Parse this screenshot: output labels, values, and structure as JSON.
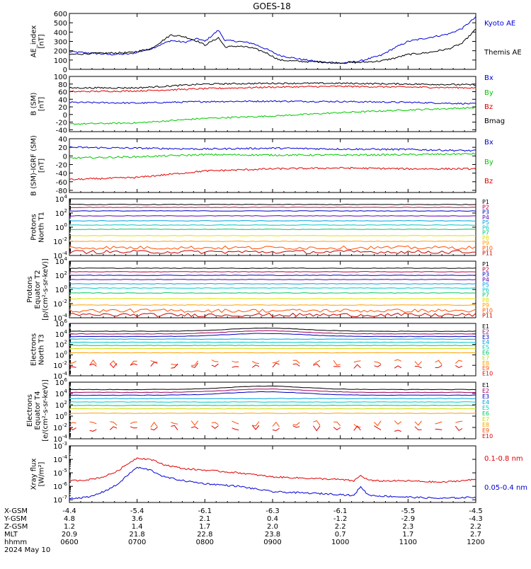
{
  "title": "GOES-18",
  "colors": {
    "black": "#000000",
    "red": "#e00000",
    "green": "#00c800",
    "blue": "#0000d8",
    "p_series": [
      "#000000",
      "#c00040",
      "#0000c0",
      "#6000c0",
      "#00a0e0",
      "#00c8c8",
      "#00c860",
      "#e0e000",
      "#ffa000",
      "#ff5000",
      "#c80000",
      "#900000"
    ],
    "e_series": [
      "#000000",
      "#a00060",
      "#0000c0",
      "#00a0e0",
      "#00c8c8",
      "#00c860",
      "#c8e000",
      "#ffa000",
      "#ff5000",
      "#e00000"
    ]
  },
  "ticks": {
    "x_positions_hours": [
      6,
      7,
      8,
      9,
      10,
      11,
      12
    ]
  },
  "ephemeris": {
    "row_labels": [
      "X-GSM",
      "Y-GSM",
      "Z-GSM",
      "MLT",
      "hhmm"
    ],
    "date": "2024 May 10",
    "columns": [
      [
        "-4.4",
        "4.8",
        "1.2",
        "20.9",
        "0600"
      ],
      [
        "-5.4",
        "3.6",
        "1.4",
        "21.8",
        "0700"
      ],
      [
        "-6.1",
        "2.1",
        "1.7",
        "22.8",
        "0800"
      ],
      [
        "-6.3",
        "0.4",
        "2.0",
        "23.8",
        "0900"
      ],
      [
        "-6.1",
        "-1.2",
        "2.2",
        "0.7",
        "1000"
      ],
      [
        "-5.5",
        "-2.9",
        "2.3",
        "1.7",
        "1100"
      ],
      [
        "-4.5",
        "-4.3",
        "2.2",
        "2.7",
        "1200"
      ]
    ]
  },
  "chart_data": [
    {
      "type": "line",
      "ylabel": "AE_index [nT]",
      "ylabel_lines": [
        "AE_index",
        "[nT]"
      ],
      "ylim": [
        0,
        600
      ],
      "yticks": [
        "0",
        "100",
        "200",
        "300",
        "400",
        "500",
        "600"
      ],
      "legend": [
        "Kyoto AE",
        "Themis AE"
      ],
      "series": [
        {
          "name": "Kyoto AE",
          "color": "blue",
          "x": [
            6.0,
            6.3,
            6.6,
            6.9,
            7.2,
            7.5,
            7.7,
            7.9,
            8.0,
            8.2,
            8.3,
            8.5,
            8.7,
            8.9,
            9.1,
            9.4,
            9.7,
            10.0,
            10.3,
            10.6,
            10.8,
            11.0,
            11.3,
            11.6,
            11.8,
            12.0
          ],
          "y": [
            190,
            175,
            160,
            165,
            220,
            310,
            290,
            330,
            300,
            420,
            310,
            300,
            280,
            220,
            150,
            110,
            80,
            65,
            90,
            150,
            230,
            300,
            340,
            380,
            440,
            560
          ]
        },
        {
          "name": "Themis AE",
          "color": "black",
          "x": [
            6.0,
            6.3,
            6.6,
            6.9,
            7.2,
            7.5,
            7.7,
            7.9,
            8.0,
            8.2,
            8.3,
            8.5,
            8.7,
            8.9,
            9.1,
            9.4,
            9.7,
            10.0,
            10.3,
            10.6,
            10.8,
            11.0,
            11.3,
            11.6,
            11.8,
            12.0
          ],
          "y": [
            160,
            170,
            175,
            180,
            220,
            370,
            350,
            300,
            260,
            340,
            240,
            250,
            230,
            180,
            100,
            85,
            80,
            70,
            75,
            90,
            120,
            160,
            180,
            220,
            280,
            430
          ]
        }
      ]
    },
    {
      "type": "line",
      "ylabel": "B (SM) [nT]",
      "ylabel_lines": [
        "B (SM)",
        "[nT]"
      ],
      "ylim": [
        -45,
        100
      ],
      "yticks": [
        "-40",
        "-20",
        "0",
        "20",
        "40",
        "60",
        "80",
        "100"
      ],
      "legend": [
        "Bx",
        "By",
        "Bz",
        "Bmag"
      ],
      "series": [
        {
          "name": "Bx",
          "color": "blue",
          "x": [
            6,
            7,
            8,
            9,
            10,
            11,
            12
          ],
          "y": [
            32,
            30,
            34,
            35,
            34,
            32,
            28
          ]
        },
        {
          "name": "By",
          "color": "green",
          "x": [
            6,
            7,
            8,
            9,
            10,
            11,
            12
          ],
          "y": [
            -25,
            -22,
            -10,
            -4,
            5,
            12,
            18
          ]
        },
        {
          "name": "Bz",
          "color": "red",
          "x": [
            6,
            7,
            8,
            9,
            10,
            11,
            12
          ],
          "y": [
            60,
            62,
            68,
            72,
            74,
            72,
            70
          ]
        },
        {
          "name": "Bmag",
          "color": "black",
          "x": [
            6,
            7,
            8,
            9,
            10,
            11,
            12
          ],
          "y": [
            70,
            70,
            80,
            82,
            82,
            80,
            78
          ]
        }
      ]
    },
    {
      "type": "line",
      "ylabel": "B (SM)-IGRF (SM) [nT]",
      "ylabel_lines": [
        "B (SM)-IGRF (SM)",
        "[nT]"
      ],
      "ylim": [
        -85,
        40
      ],
      "yticks": [
        "-80",
        "-60",
        "-40",
        "-20",
        "0",
        "20",
        "40"
      ],
      "legend": [
        "Bx",
        "By",
        "Bz"
      ],
      "series": [
        {
          "name": "Bx",
          "color": "blue",
          "x": [
            6,
            7,
            8,
            9,
            10,
            11,
            12
          ],
          "y": [
            20,
            18,
            16,
            18,
            16,
            15,
            12
          ]
        },
        {
          "name": "By",
          "color": "green",
          "x": [
            6,
            7,
            8,
            9,
            10,
            11,
            12
          ],
          "y": [
            -5,
            -2,
            3,
            2,
            2,
            3,
            5
          ]
        },
        {
          "name": "Bz",
          "color": "red",
          "x": [
            6,
            7,
            8,
            9,
            10,
            11,
            12
          ],
          "y": [
            -55,
            -50,
            -35,
            -30,
            -28,
            -30,
            -30
          ]
        }
      ]
    },
    {
      "type": "line",
      "log_scale": true,
      "ylabel": "Protons North T1",
      "ylabel_lines": [
        "Protons",
        "North T1"
      ],
      "ylim": [
        -4,
        4
      ],
      "yticks": [
        "10^-4",
        "10^-2",
        "10^0",
        "10^2",
        "10^4"
      ],
      "legend": [
        "P1",
        "P2",
        "P3",
        "P4",
        "P5",
        "P6",
        "P7",
        "P8",
        "P9",
        "P10",
        "P11"
      ],
      "series_log10": [
        3.2,
        2.8,
        2.3,
        1.6,
        0.9,
        0.3,
        -0.3,
        -1.2,
        -2.0,
        -2.9,
        -3.5
      ],
      "colors": [
        "#000000",
        "#c00040",
        "#0000c0",
        "#6000c0",
        "#00a0e0",
        "#00c8c8",
        "#00c860",
        "#e0e000",
        "#ffa000",
        "#ff5000",
        "#c80000"
      ]
    },
    {
      "type": "line",
      "log_scale": true,
      "ylabel": "Protons Equator T2 [p/(cm^2-s-sr-keV)]",
      "ylabel_lines": [
        "Protons",
        "Equator T2",
        "[p/(cm²-s-sr-keV)]"
      ],
      "ylim": [
        -4,
        4
      ],
      "yticks": [
        "10^-4",
        "10^-2",
        "10^0",
        "10^2",
        "10^4"
      ],
      "legend": [
        "P1",
        "P2",
        "P3",
        "P4",
        "P5",
        "P6",
        "P7",
        "P8",
        "P9",
        "P10",
        "P11"
      ],
      "series_log10": [
        3.0,
        2.5,
        2.0,
        1.4,
        0.8,
        0.2,
        -0.5,
        -1.3,
        -2.2,
        -3.0,
        -3.6
      ],
      "colors": [
        "#000000",
        "#c00040",
        "#0000c0",
        "#6000c0",
        "#00a0e0",
        "#00c8c8",
        "#00c860",
        "#e0e000",
        "#ffa000",
        "#ff5000",
        "#c80000"
      ]
    },
    {
      "type": "line",
      "log_scale": true,
      "ylabel": "Electrons North T3",
      "ylabel_lines": [
        "Electrons",
        "North T3"
      ],
      "ylim": [
        -4,
        6
      ],
      "yticks": [
        "10^-4",
        "10^-2",
        "10^0",
        "10^2",
        "10^4",
        "10^6"
      ],
      "legend": [
        "E1",
        "E2",
        "E3",
        "E4",
        "E5",
        "E6",
        "E7",
        "E8",
        "E9",
        "E10"
      ],
      "series_log10": [
        4.5,
        4.0,
        3.5,
        3.0,
        2.4,
        1.8,
        1.2,
        0.4,
        -1.5,
        -2.0
      ],
      "colors": [
        "#000000",
        "#a00060",
        "#0000c0",
        "#00a0e0",
        "#00c8c8",
        "#00c860",
        "#c8e000",
        "#ffa000",
        "#ff5000",
        "#e00000"
      ]
    },
    {
      "type": "line",
      "log_scale": true,
      "ylabel": "Electrons Equator T4 [e/(cm^2-s-sr-keV)]",
      "ylabel_lines": [
        "Electrons",
        "Equator T4",
        "[e/(cm²-s-sr-keV)]"
      ],
      "ylim": [
        -4,
        6
      ],
      "yticks": [
        "10^-4",
        "10^-2",
        "10^0",
        "10^2",
        "10^4",
        "10^6"
      ],
      "legend": [
        "E1",
        "E2",
        "E3",
        "E4",
        "E5",
        "E6",
        "E7",
        "E8",
        "E9",
        "E10"
      ],
      "series_log10": [
        4.7,
        4.2,
        3.7,
        3.1,
        2.5,
        1.9,
        1.3,
        0.5,
        -1.4,
        -2.2
      ],
      "colors": [
        "#000000",
        "#a00060",
        "#0000c0",
        "#00a0e0",
        "#00c8c8",
        "#00c860",
        "#c8e000",
        "#ffa000",
        "#ff5000",
        "#e00000"
      ]
    },
    {
      "type": "line",
      "log_scale": true,
      "ylabel": "Xray flux [W/m^2]",
      "ylabel_lines": [
        "Xray flux",
        "[W/m²]"
      ],
      "ylim": [
        -7.2,
        -3
      ],
      "yticks": [
        "10^-7",
        "10^-6",
        "10^-5",
        "10^-4",
        "10^-3"
      ],
      "legend": [
        "0.1-0.8 nm",
        "0.05-0.4 nm"
      ],
      "series": [
        {
          "name": "0.1-0.8 nm",
          "color": "red",
          "x": [
            6.0,
            6.3,
            6.5,
            6.7,
            6.9,
            7.0,
            7.2,
            7.4,
            7.7,
            8.0,
            8.5,
            9.0,
            9.5,
            10.0,
            10.2,
            10.3,
            10.4,
            10.5,
            11.0,
            11.5,
            12.0
          ],
          "y_log10": [
            -5.6,
            -5.5,
            -5.3,
            -4.9,
            -4.2,
            -3.9,
            -4.0,
            -4.4,
            -4.7,
            -4.8,
            -5.0,
            -5.3,
            -5.4,
            -5.5,
            -5.6,
            -5.2,
            -5.5,
            -5.6,
            -5.6,
            -5.7,
            -5.5
          ]
        },
        {
          "name": "0.05-0.4 nm",
          "color": "blue",
          "x": [
            6.0,
            6.3,
            6.5,
            6.7,
            6.9,
            7.0,
            7.2,
            7.4,
            7.7,
            8.0,
            8.5,
            9.0,
            9.5,
            10.0,
            10.2,
            10.3,
            10.4,
            10.5,
            11.0,
            11.5,
            12.0
          ],
          "y_log10": [
            -6.9,
            -6.8,
            -6.4,
            -5.9,
            -5.0,
            -4.6,
            -4.8,
            -5.3,
            -5.6,
            -5.8,
            -6.0,
            -6.4,
            -6.5,
            -6.6,
            -6.7,
            -6.0,
            -6.6,
            -6.7,
            -6.8,
            -6.9,
            -6.8
          ]
        }
      ]
    }
  ]
}
